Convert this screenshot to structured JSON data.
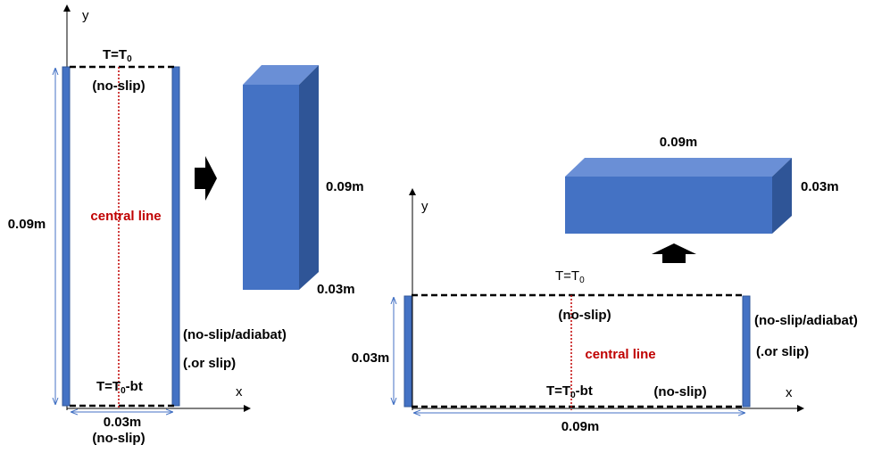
{
  "left": {
    "axis_y": "y",
    "axis_x": "x",
    "top_temp": {
      "main": "T=T",
      "sub": "0"
    },
    "top_bc": "(no-slip)",
    "height": "0.09m",
    "center": "central line",
    "side_bc": "(no-slip/adiabat)",
    "side_alt": "(.or slip)",
    "bottom_temp": {
      "main": "T=T",
      "sub": "0",
      "tail": "-bt"
    },
    "width": "0.03m",
    "bottom_bc": "(no-slip)",
    "box_height": "0.09m",
    "box_depth": "0.03m"
  },
  "right": {
    "axis_y": "y",
    "axis_x": "x",
    "top_temp": {
      "main": "T=T",
      "sub": "0"
    },
    "top_bc": "(no-slip)",
    "height": "0.03m",
    "center": "central line",
    "side_bc": "(no-slip/adiabat)",
    "side_alt": "(.or slip)",
    "bottom_temp": {
      "main": "T=T",
      "sub": "0",
      "tail": "-bt"
    },
    "bottom_bc": "(no-slip)",
    "width": "0.09m",
    "box_width": "0.09m",
    "box_height": "0.03m"
  }
}
